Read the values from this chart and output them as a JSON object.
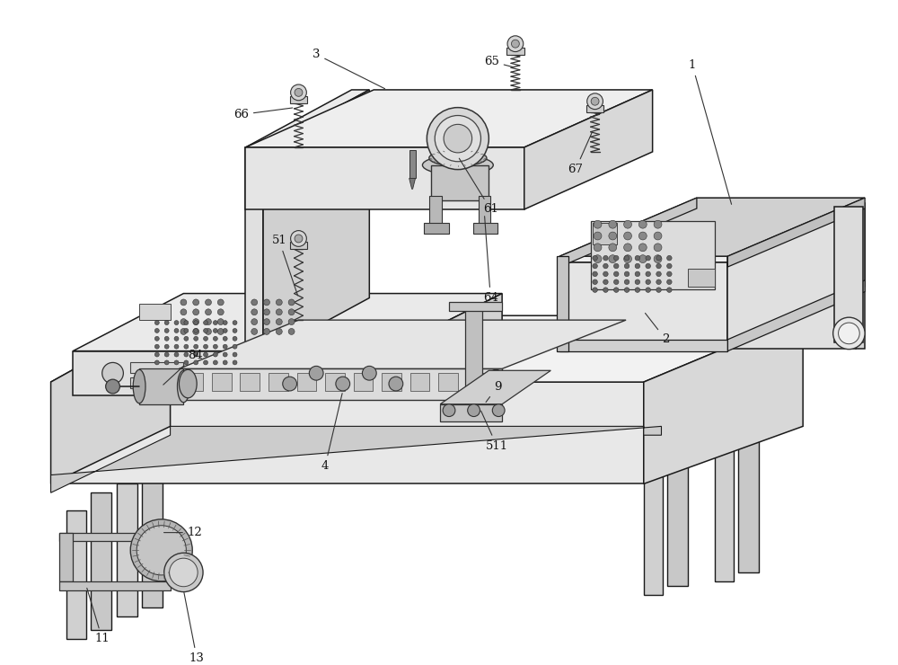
{
  "bg": "#ffffff",
  "lc": "#1a1a1a",
  "lw": 1.1,
  "label_fs": 9.5,
  "figsize": [
    10.0,
    7.4
  ],
  "dpi": 100
}
